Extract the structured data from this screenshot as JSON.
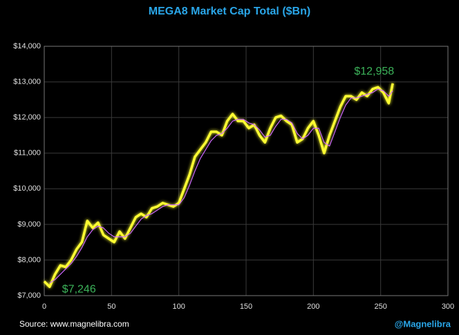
{
  "chart_data": {
    "type": "line",
    "title": "MEGA8 Market Cap Total ($Bn)",
    "source": "Source: www.magnelibra.com",
    "handle": "@Magnelibra",
    "x": [
      0,
      4,
      8,
      12,
      16,
      20,
      24,
      28,
      32,
      36,
      40,
      44,
      48,
      52,
      56,
      60,
      64,
      68,
      72,
      76,
      80,
      84,
      88,
      92,
      96,
      100,
      104,
      108,
      112,
      116,
      120,
      124,
      128,
      132,
      136,
      140,
      144,
      148,
      152,
      156,
      160,
      164,
      168,
      172,
      176,
      180,
      184,
      188,
      192,
      196,
      200,
      204,
      208,
      212,
      216,
      220,
      224,
      228,
      232,
      236,
      240,
      244,
      248,
      252,
      256,
      259
    ],
    "series": [
      {
        "color": "#ffff33",
        "values": [
          7400,
          7246,
          7600,
          7850,
          7800,
          8000,
          8300,
          8500,
          9100,
          8900,
          9050,
          8700,
          8600,
          8500,
          8800,
          8600,
          8900,
          9200,
          9300,
          9200,
          9450,
          9500,
          9600,
          9550,
          9500,
          9600,
          10000,
          10400,
          10900,
          11100,
          11300,
          11600,
          11600,
          11500,
          11900,
          12100,
          11900,
          11900,
          11700,
          11800,
          11500,
          11300,
          11700,
          12000,
          12050,
          11900,
          11800,
          11300,
          11400,
          11700,
          11900,
          11500,
          11000,
          11500,
          11900,
          12300,
          12600,
          12600,
          12500,
          12700,
          12600,
          12800,
          12850,
          12700,
          12400,
          12958
        ]
      },
      {
        "color": "#cc66ff",
        "values": [
          null,
          7350,
          7450,
          7600,
          7750,
          7900,
          8100,
          8350,
          8650,
          8850,
          8950,
          8900,
          8750,
          8650,
          8650,
          8650,
          8750,
          8950,
          9150,
          9250,
          9300,
          9400,
          9500,
          9550,
          9550,
          9550,
          9750,
          10100,
          10500,
          10850,
          11100,
          11350,
          11500,
          11550,
          11700,
          11900,
          11950,
          11950,
          11850,
          11800,
          11650,
          11450,
          11500,
          11750,
          11950,
          11950,
          11850,
          11550,
          11400,
          11500,
          11700,
          11700,
          11300,
          11200,
          11600,
          12000,
          12350,
          12550,
          12550,
          12600,
          12650,
          12700,
          12800,
          12750,
          12600,
          12750
        ]
      }
    ],
    "annotations": [
      {
        "text": "$7,246",
        "x": 4,
        "y": 7246
      },
      {
        "text": "$12,958",
        "x": 259,
        "y": 12958
      }
    ],
    "xlim": [
      0,
      300
    ],
    "xticks": [
      0,
      50,
      100,
      150,
      200,
      250,
      300
    ],
    "ylim": [
      7000,
      14000
    ],
    "yticks": [
      {
        "value": 7000,
        "label": "$7,000"
      },
      {
        "value": 8000,
        "label": "$8,000"
      },
      {
        "value": 9000,
        "label": "$9,000"
      },
      {
        "value": 10000,
        "label": "$10,000"
      },
      {
        "value": 11000,
        "label": "$11,000"
      },
      {
        "value": 12000,
        "label": "$12,000"
      },
      {
        "value": 13000,
        "label": "$13,000"
      },
      {
        "value": 14000,
        "label": "$14,000"
      }
    ],
    "grid": true
  }
}
